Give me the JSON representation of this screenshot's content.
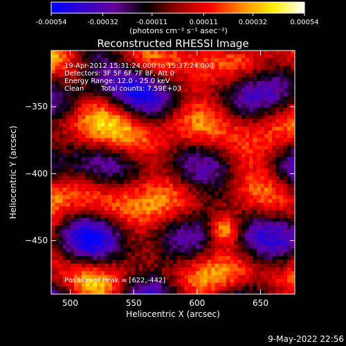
{
  "chart_data": {
    "type": "heatmap",
    "title": "Reconstructed RHESSI Image",
    "xlabel": "Heliocentric X (arcsec)",
    "ylabel": "Heliocentric Y (arcsec)",
    "x_range": [
      485,
      677
    ],
    "y_range": [
      -490,
      -308
    ],
    "x_ticks": [
      500,
      550,
      600,
      650
    ],
    "y_ticks": [
      -350,
      -400,
      -450
    ],
    "colorbar": {
      "label": "(photons cm⁻² s⁻¹ asec⁻²)",
      "range": [
        -0.00054,
        0.00054
      ],
      "ticks": [
        "-0.00054",
        "-0.00032",
        "-0.00011",
        "0.00011",
        "0.00032",
        "0.00054"
      ],
      "colors": [
        "#0000ff",
        "#3300cc",
        "#660099",
        "#000000",
        "#990000",
        "#ff0000",
        "#ff8800",
        "#ffee00",
        "#ffffff"
      ]
    },
    "annotations": [
      "19-Apr-2012 15:31:24.000 to 15:37:24.000",
      "Detectors: 3F 5F 6F 7F 8F, Att 0",
      "Energy Range: 12.0 - 25.0 keV",
      "Clean",
      "Total counts: 7.59E+03",
      "Position of Peak = [622,-442]"
    ],
    "peak": {
      "x": 622,
      "y": -442
    }
  },
  "footer": {
    "date": "9-May-2022 22:56"
  }
}
